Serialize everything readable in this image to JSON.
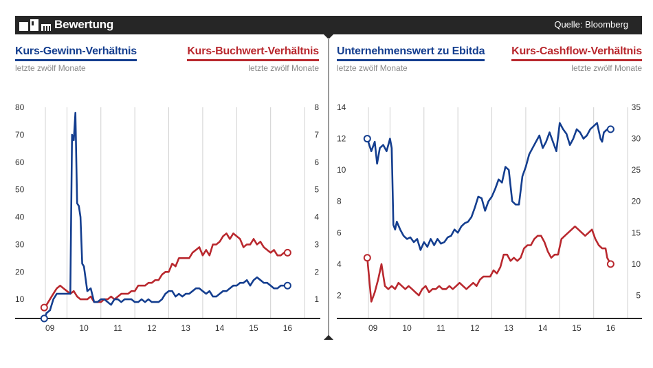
{
  "header": {
    "title": "Bewertung",
    "source": "Quelle: Bloomberg"
  },
  "colors": {
    "blue": "#143e8f",
    "red": "#b9282e",
    "bar": "#262626",
    "grid": "#d0d0d0"
  },
  "chart_data": [
    {
      "type": "line",
      "title_left": "Kurs-Gewinn-Verhältnis",
      "subtitle_left": "letzte zwölf Monate",
      "title_right": "Kurs-Buchwert-Verhältnis",
      "subtitle_right": "letzte zwölf Monate",
      "x_ticks": [
        "09",
        "10",
        "11",
        "12",
        "13",
        "14",
        "15",
        "16"
      ],
      "xlim": [
        2008.5,
        2016.6
      ],
      "ylim_left": [
        0,
        80
      ],
      "yticks_left": [
        "80",
        "70",
        "60",
        "50",
        "40",
        "30",
        "20",
        "10"
      ],
      "ylim_right": [
        0,
        8
      ],
      "yticks_right": [
        "8",
        "7",
        "6",
        "5",
        "4",
        "3",
        "2",
        "1"
      ],
      "series": [
        {
          "name": "Kurs-Gewinn-Verhältnis",
          "axis": "left",
          "color": "blue",
          "x": [
            2008.83,
            2008.9,
            2009.0,
            2009.1,
            2009.2,
            2009.35,
            2009.5,
            2009.6,
            2009.65,
            2009.7,
            2009.75,
            2009.8,
            2009.85,
            2009.9,
            2009.95,
            2010.0,
            2010.1,
            2010.2,
            2010.3,
            2010.4,
            2010.5,
            2010.6,
            2010.7,
            2010.8,
            2010.9,
            2011.0,
            2011.1,
            2011.2,
            2011.3,
            2011.4,
            2011.5,
            2011.6,
            2011.7,
            2011.8,
            2011.9,
            2012.0,
            2012.1,
            2012.2,
            2012.3,
            2012.4,
            2012.5,
            2012.6,
            2012.7,
            2012.8,
            2012.9,
            2013.0,
            2013.1,
            2013.2,
            2013.3,
            2013.4,
            2013.5,
            2013.6,
            2013.7,
            2013.8,
            2013.9,
            2014.0,
            2014.1,
            2014.2,
            2014.3,
            2014.4,
            2014.5,
            2014.6,
            2014.7,
            2014.8,
            2014.9,
            2015.0,
            2015.1,
            2015.2,
            2015.3,
            2015.4,
            2015.5,
            2015.6,
            2015.7,
            2015.8,
            2015.9,
            2016.0
          ],
          "values": [
            3,
            5,
            6,
            10,
            12,
            12,
            12,
            12,
            70,
            68,
            78,
            45,
            44,
            40,
            23,
            22,
            13,
            14,
            9,
            9,
            10,
            10,
            9,
            8,
            10,
            10,
            9,
            10,
            10,
            10,
            9,
            9,
            10,
            9,
            10,
            9,
            9,
            9,
            10,
            12,
            13,
            13,
            11,
            12,
            11,
            12,
            12,
            13,
            14,
            14,
            13,
            12,
            13,
            11,
            11,
            12,
            13,
            13,
            14,
            15,
            15,
            16,
            16,
            17,
            15,
            17,
            18,
            17,
            16,
            16,
            15,
            14,
            14,
            15,
            15,
            15
          ],
          "end_marker": true
        }
      ],
      "series_right": [
        {
          "name": "Kurs-Buchwert-Verhältnis",
          "axis": "right",
          "color": "red",
          "x": [
            2008.83,
            2008.9,
            2009.0,
            2009.1,
            2009.2,
            2009.3,
            2009.4,
            2009.5,
            2009.6,
            2009.7,
            2009.8,
            2009.9,
            2010.0,
            2010.1,
            2010.2,
            2010.3,
            2010.4,
            2010.5,
            2010.6,
            2010.7,
            2010.8,
            2010.9,
            2011.0,
            2011.1,
            2011.2,
            2011.3,
            2011.4,
            2011.5,
            2011.6,
            2011.7,
            2011.8,
            2011.9,
            2012.0,
            2012.1,
            2012.2,
            2012.3,
            2012.4,
            2012.5,
            2012.6,
            2012.7,
            2012.8,
            2012.9,
            2013.0,
            2013.1,
            2013.2,
            2013.3,
            2013.4,
            2013.5,
            2013.6,
            2013.7,
            2013.8,
            2013.9,
            2014.0,
            2014.1,
            2014.2,
            2014.3,
            2014.4,
            2014.5,
            2014.6,
            2014.7,
            2014.8,
            2014.9,
            2015.0,
            2015.1,
            2015.2,
            2015.3,
            2015.4,
            2015.5,
            2015.6,
            2015.7,
            2015.8,
            2015.9,
            2016.0
          ],
          "values": [
            0.7,
            0.8,
            1.0,
            1.2,
            1.4,
            1.5,
            1.4,
            1.3,
            1.2,
            1.3,
            1.1,
            1.0,
            1.0,
            1.0,
            1.1,
            0.9,
            0.9,
            0.9,
            1.0,
            1.0,
            1.1,
            1.0,
            1.1,
            1.2,
            1.2,
            1.2,
            1.3,
            1.3,
            1.5,
            1.5,
            1.5,
            1.6,
            1.6,
            1.7,
            1.7,
            1.9,
            2.0,
            2.0,
            2.3,
            2.2,
            2.5,
            2.5,
            2.5,
            2.5,
            2.7,
            2.8,
            2.9,
            2.6,
            2.8,
            2.6,
            3.0,
            3.0,
            3.1,
            3.3,
            3.4,
            3.2,
            3.4,
            3.3,
            3.2,
            2.9,
            3.0,
            3.0,
            3.2,
            3.0,
            3.1,
            2.9,
            2.8,
            2.7,
            2.8,
            2.6,
            2.6,
            2.7,
            2.7
          ],
          "end_marker": true
        }
      ]
    },
    {
      "type": "line",
      "title_left": "Unternehmenswert zu Ebitda",
      "subtitle_left": "letzte zwölf Monate",
      "title_right": "Kurs-Cashflow-Verhältnis",
      "subtitle_right": "letzte zwölf Monate",
      "x_ticks": [
        "09",
        "10",
        "11",
        "12",
        "13",
        "14",
        "15",
        "16"
      ],
      "xlim": [
        2008.5,
        2016.6
      ],
      "ylim_left": [
        0,
        14
      ],
      "yticks_left": [
        "14",
        "12",
        "10",
        "8",
        "6",
        "4",
        "2"
      ],
      "ylim_right": [
        0,
        35
      ],
      "yticks_right": [
        "35",
        "30",
        "25",
        "20",
        "15",
        "10",
        "5"
      ],
      "series": [
        {
          "name": "Unternehmenswert zu Ebitda",
          "axis": "left",
          "color": "blue",
          "x": [
            2008.83,
            2008.95,
            2009.05,
            2009.12,
            2009.2,
            2009.3,
            2009.4,
            2009.5,
            2009.55,
            2009.6,
            2009.65,
            2009.7,
            2009.8,
            2009.9,
            2010.0,
            2010.1,
            2010.2,
            2010.3,
            2010.4,
            2010.5,
            2010.6,
            2010.7,
            2010.8,
            2010.9,
            2011.0,
            2011.1,
            2011.2,
            2011.3,
            2011.4,
            2011.5,
            2011.6,
            2011.7,
            2011.8,
            2011.9,
            2012.0,
            2012.1,
            2012.2,
            2012.3,
            2012.4,
            2012.5,
            2012.6,
            2012.7,
            2012.8,
            2012.9,
            2013.0,
            2013.1,
            2013.2,
            2013.3,
            2013.4,
            2013.5,
            2013.6,
            2013.7,
            2013.8,
            2013.9,
            2014.0,
            2014.1,
            2014.2,
            2014.3,
            2014.4,
            2014.5,
            2014.6,
            2014.7,
            2014.8,
            2014.9,
            2015.0,
            2015.1,
            2015.2,
            2015.3,
            2015.4,
            2015.5,
            2015.6,
            2015.7,
            2015.75,
            2015.8,
            2015.9,
            2016.0
          ],
          "values": [
            12.0,
            11.2,
            11.8,
            10.4,
            11.4,
            11.6,
            11.2,
            12.0,
            11.4,
            6.5,
            6.2,
            6.7,
            6.2,
            5.8,
            5.6,
            5.7,
            5.4,
            5.6,
            4.9,
            5.4,
            5.1,
            5.6,
            5.2,
            5.6,
            5.3,
            5.4,
            5.7,
            5.8,
            6.2,
            6.0,
            6.4,
            6.6,
            6.7,
            7.0,
            7.6,
            8.3,
            8.2,
            7.4,
            8.0,
            8.3,
            8.8,
            9.4,
            9.2,
            10.2,
            10.0,
            8.0,
            7.8,
            7.8,
            9.6,
            10.2,
            11.0,
            11.4,
            11.8,
            12.2,
            11.4,
            11.8,
            12.4,
            11.8,
            11.2,
            13.0,
            12.6,
            12.3,
            11.6,
            12.0,
            12.6,
            12.4,
            12.0,
            12.2,
            12.6,
            12.8,
            13.0,
            12.0,
            11.8,
            12.4,
            12.6,
            12.6
          ],
          "end_marker": true
        }
      ],
      "series_right": [
        {
          "name": "Kurs-Cashflow-Verhältnis",
          "axis": "right",
          "color": "red",
          "x": [
            2008.83,
            2008.95,
            2009.05,
            2009.15,
            2009.25,
            2009.35,
            2009.45,
            2009.55,
            2009.65,
            2009.75,
            2009.85,
            2009.95,
            2010.05,
            2010.15,
            2010.25,
            2010.35,
            2010.45,
            2010.55,
            2010.65,
            2010.75,
            2010.85,
            2010.95,
            2011.05,
            2011.15,
            2011.25,
            2011.35,
            2011.45,
            2011.55,
            2011.65,
            2011.75,
            2011.85,
            2011.95,
            2012.05,
            2012.15,
            2012.25,
            2012.35,
            2012.45,
            2012.55,
            2012.65,
            2012.75,
            2012.85,
            2012.95,
            2013.05,
            2013.15,
            2013.25,
            2013.35,
            2013.45,
            2013.55,
            2013.65,
            2013.75,
            2013.85,
            2013.95,
            2014.05,
            2014.15,
            2014.25,
            2014.35,
            2014.45,
            2014.55,
            2014.65,
            2014.75,
            2014.85,
            2014.95,
            2015.05,
            2015.15,
            2015.25,
            2015.35,
            2015.45,
            2015.55,
            2015.65,
            2015.75,
            2015.85,
            2015.9,
            2016.0
          ],
          "values": [
            11.0,
            4.0,
            5.5,
            7.5,
            10.0,
            6.5,
            6.0,
            6.5,
            6.0,
            7.0,
            6.5,
            6.0,
            6.5,
            6.0,
            5.5,
            5.0,
            6.0,
            6.5,
            5.5,
            6.0,
            6.0,
            6.5,
            6.0,
            6.0,
            6.5,
            6.0,
            6.5,
            7.0,
            6.5,
            6.0,
            6.5,
            7.0,
            6.5,
            7.5,
            8.0,
            8.0,
            8.0,
            9.0,
            8.5,
            9.5,
            11.5,
            11.5,
            10.5,
            11.0,
            10.5,
            11.0,
            12.5,
            13.0,
            13.0,
            14.0,
            14.5,
            14.5,
            13.5,
            12.0,
            11.0,
            11.5,
            11.5,
            14.0,
            14.5,
            15.0,
            15.5,
            16.0,
            15.5,
            15.0,
            14.5,
            15.0,
            15.5,
            14.0,
            13.0,
            12.5,
            12.5,
            11.0,
            10.0
          ],
          "end_marker": true
        }
      ]
    }
  ]
}
